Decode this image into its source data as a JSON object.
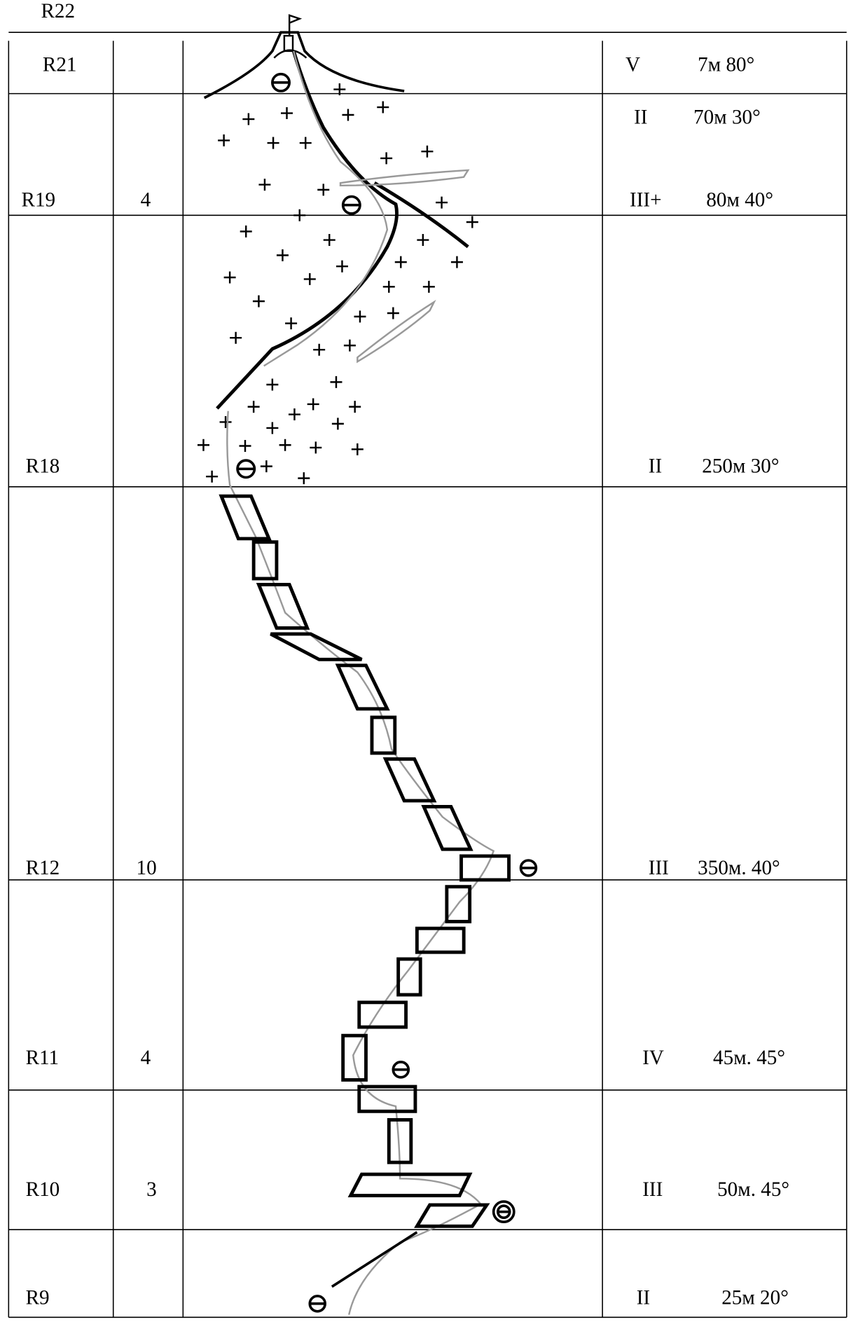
{
  "top_label": "R22",
  "rows": [
    {
      "label": "R21",
      "grades": [
        {
          "grade": "V",
          "pitch": "7м 80°"
        }
      ]
    },
    {
      "label": "R19",
      "count": "4",
      "grades": [
        {
          "grade": "II",
          "pitch": "70м 30°"
        },
        {
          "grade": "III+",
          "pitch": "80м 40°"
        }
      ]
    },
    {
      "label": "R18",
      "grades": [
        {
          "grade": "II",
          "pitch": "250м 30°"
        }
      ]
    },
    {
      "label": "R12",
      "count": "10",
      "grades": [
        {
          "grade": "III",
          "pitch": "350м. 40°"
        }
      ]
    },
    {
      "label": "R11",
      "count": "4",
      "grades": [
        {
          "grade": "IV",
          "pitch": "45м. 45°"
        }
      ]
    },
    {
      "label": "R10",
      "count": "3",
      "grades": [
        {
          "grade": "III",
          "pitch": "50м. 45°"
        }
      ]
    },
    {
      "label": "R9",
      "grades": [
        {
          "grade": "II",
          "pitch": "25м 20°"
        }
      ]
    }
  ]
}
